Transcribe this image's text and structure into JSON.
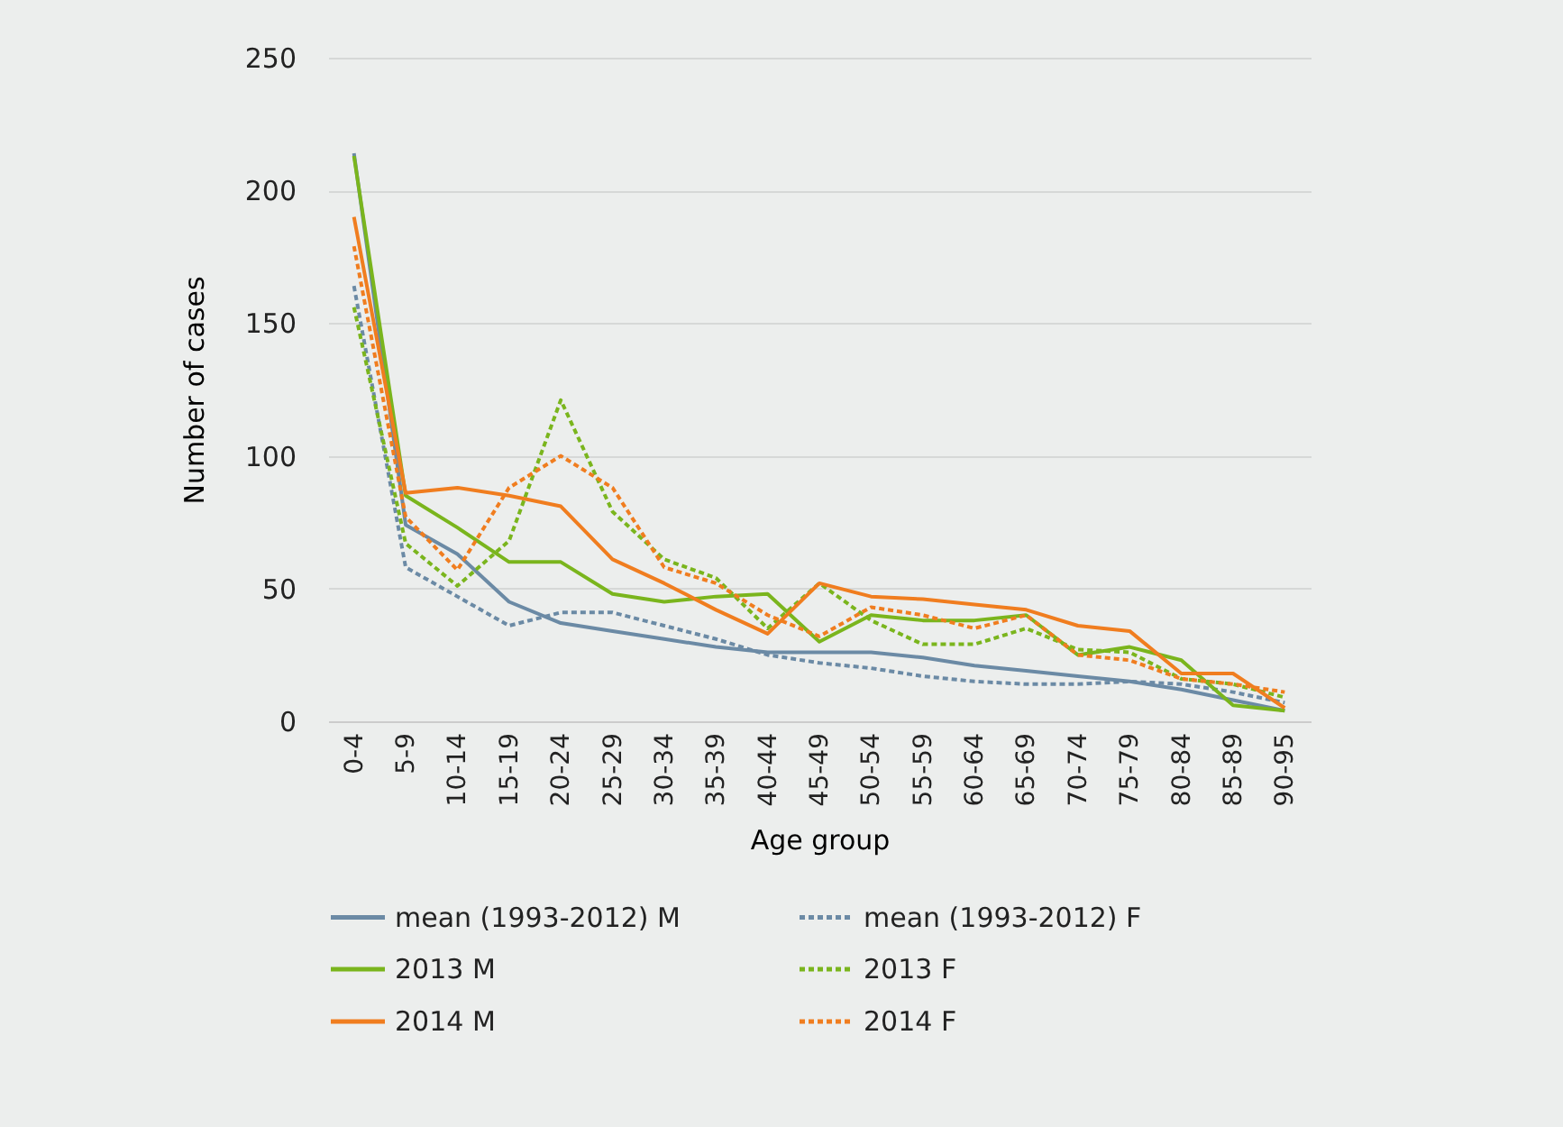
{
  "chart_data": {
    "type": "line",
    "xlabel": "Age group",
    "ylabel": "Number of cases",
    "categories": [
      "0-4",
      "5-9",
      "10-14",
      "15-19",
      "20-24",
      "25-29",
      "30-34",
      "35-39",
      "40-44",
      "45-49",
      "50-54",
      "55-59",
      "60-64",
      "65-69",
      "70-74",
      "75-79",
      "80-84",
      "85-89",
      "90-95"
    ],
    "ylim": [
      0,
      250
    ],
    "yticks": [
      0,
      50,
      100,
      150,
      200,
      250
    ],
    "grid": "y",
    "legend": "bottom",
    "marker": "none",
    "series": [
      {
        "name": "mean (1993-2012) M",
        "color": "#6b8aa5",
        "line_style": "solid",
        "values": [
          214,
          74,
          63,
          45,
          37,
          34,
          31,
          28,
          26,
          26,
          26,
          24,
          21,
          19,
          17,
          15,
          12,
          8,
          4
        ]
      },
      {
        "name": "mean (1993-2012) F",
        "color": "#6b8aa5",
        "line_style": "dotted",
        "values": [
          164,
          58,
          47,
          36,
          41,
          41,
          36,
          31,
          25,
          22,
          20,
          17,
          15,
          14,
          14,
          15,
          14,
          11,
          7
        ]
      },
      {
        "name": "2013 M",
        "color": "#7ab51d",
        "line_style": "solid",
        "values": [
          213,
          85,
          73,
          60,
          60,
          48,
          45,
          47,
          48,
          30,
          40,
          38,
          38,
          40,
          25,
          28,
          23,
          6,
          4
        ]
      },
      {
        "name": "2013 F",
        "color": "#7ab51d",
        "line_style": "dotted",
        "values": [
          156,
          67,
          51,
          68,
          121,
          79,
          61,
          54,
          35,
          52,
          38,
          29,
          29,
          35,
          27,
          26,
          16,
          14,
          9
        ]
      },
      {
        "name": "2014 M",
        "color": "#f07d1f",
        "line_style": "solid",
        "values": [
          190,
          86,
          88,
          85,
          81,
          61,
          52,
          42,
          33,
          52,
          47,
          46,
          44,
          42,
          36,
          34,
          18,
          18,
          5
        ]
      },
      {
        "name": "2014 F",
        "color": "#f07d1f",
        "line_style": "dotted",
        "values": [
          179,
          77,
          57,
          88,
          100,
          88,
          58,
          52,
          40,
          32,
          43,
          40,
          35,
          40,
          25,
          23,
          16,
          14,
          11
        ]
      }
    ]
  }
}
